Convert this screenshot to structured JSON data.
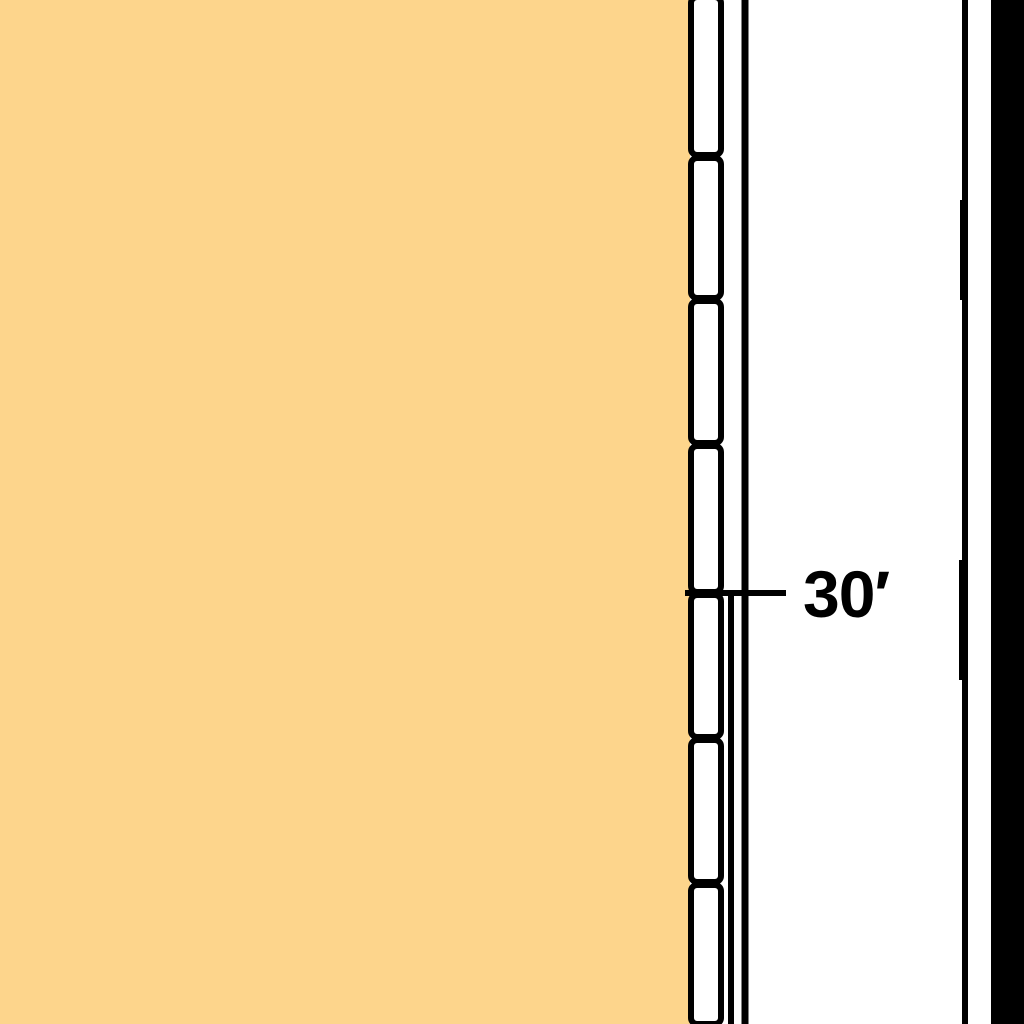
{
  "diagram": {
    "depth_label": "30′"
  },
  "colors": {
    "fill": "#FDD58C",
    "ink": "#000000",
    "background": "#FFFFFF"
  }
}
